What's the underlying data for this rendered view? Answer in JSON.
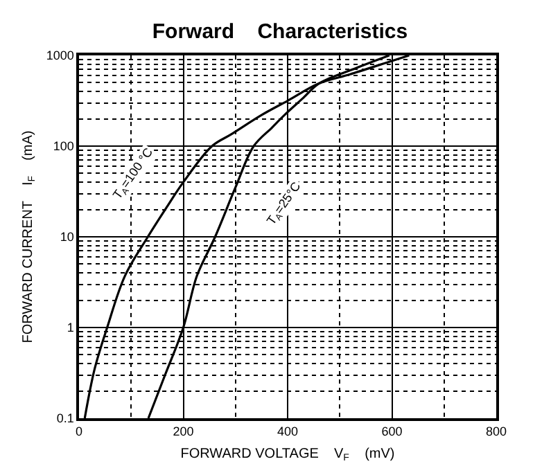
{
  "chart_data": {
    "type": "line",
    "title": "Forward    Characteristics",
    "xlabel": "FORWARD VOLTAGE    V$_{F}$    (mV)",
    "ylabel": "FORWARD CURRENT    I$_{F}$    (mA)",
    "series": [
      {
        "name": "T$_{A}$=100 °C",
        "color": "#000000",
        "x": [
          11,
          30,
          54,
          88,
          132,
          170,
          200,
          255,
          292,
          350,
          400,
          460,
          520,
          600,
          633
        ],
        "values": [
          0.1,
          0.35,
          1,
          3.7,
          10,
          22,
          40,
          100,
          135,
          220,
          316,
          490,
          620,
          870,
          1000
        ]
      },
      {
        "name": "T$_{A}$=25°C",
        "color": "#000000",
        "x": [
          133,
          165,
          200,
          226,
          261,
          300,
          335,
          370,
          394,
          430,
          460,
          530,
          595
        ],
        "values": [
          0.1,
          0.3,
          1,
          3.7,
          10,
          35,
          100,
          160,
          220,
          340,
          490,
          720,
          1000
        ]
      }
    ],
    "xlim": [
      0,
      800
    ],
    "ylim": [
      0.1,
      1000
    ],
    "log": "y",
    "grid": true,
    "legend": false,
    "line_style": "solid",
    "marker": "none",
    "xticks": [
      0,
      {
        "value": 100,
        "label": null
      },
      200,
      {
        "value": 300,
        "label": null
      },
      400,
      {
        "value": 500,
        "label": null
      },
      600,
      {
        "value": 700,
        "label": null
      },
      800
    ],
    "yticks": [
      0.1,
      {
        "value": 0.2,
        "label": null
      },
      {
        "value": 0.3,
        "label": null
      },
      {
        "value": 0.4,
        "label": null
      },
      {
        "value": 0.5,
        "label": null
      },
      {
        "value": 0.6,
        "label": null
      },
      {
        "value": 0.7,
        "label": null
      },
      {
        "value": 0.8,
        "label": null
      },
      {
        "value": 0.9,
        "label": null
      },
      1,
      {
        "value": 2,
        "label": null
      },
      {
        "value": 3,
        "label": null
      },
      {
        "value": 4,
        "label": null
      },
      {
        "value": 5,
        "label": null
      },
      {
        "value": 6,
        "label": null
      },
      {
        "value": 7,
        "label": null
      },
      {
        "value": 8,
        "label": null
      },
      {
        "value": 9,
        "label": null
      },
      10,
      {
        "value": 20,
        "label": null
      },
      {
        "value": 30,
        "label": null
      },
      {
        "value": 40,
        "label": null
      },
      {
        "value": 50,
        "label": null
      },
      {
        "value": 60,
        "label": null
      },
      {
        "value": 70,
        "label": null
      },
      {
        "value": 80,
        "label": null
      },
      {
        "value": 90,
        "label": null
      },
      100,
      {
        "value": 200,
        "label": null
      },
      {
        "value": 300,
        "label": null
      },
      {
        "value": 400,
        "label": null
      },
      {
        "value": 500,
        "label": null
      },
      {
        "value": 600,
        "label": null
      },
      {
        "value": 700,
        "label": null
      },
      {
        "value": 800,
        "label": null
      },
      {
        "value": 900,
        "label": null
      },
      1000
    ]
  }
}
